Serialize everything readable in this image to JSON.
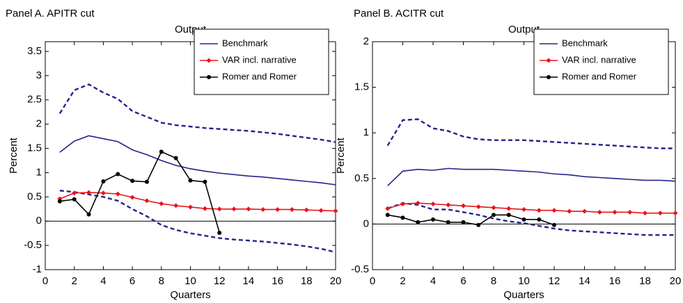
{
  "chart_data": [
    {
      "type": "line",
      "panel_label": "Panel A. APITR cut",
      "title": "Output",
      "xlabel": "Quarters",
      "ylabel": "Percent",
      "x": [
        1,
        2,
        3,
        4,
        5,
        6,
        7,
        8,
        9,
        10,
        11,
        12,
        13,
        14,
        15,
        16,
        17,
        18,
        19,
        20
      ],
      "xlim": [
        0,
        20
      ],
      "xticks": [
        0,
        2,
        4,
        6,
        8,
        10,
        12,
        14,
        16,
        18,
        20
      ],
      "ylim": [
        -1,
        3.7
      ],
      "yticks": [
        -1,
        -0.5,
        0,
        0.5,
        1,
        1.5,
        2,
        2.5,
        3,
        3.5
      ],
      "legend": "upper right",
      "series": [
        {
          "color": "#23238c",
          "dash": true,
          "values": [
            2.22,
            2.7,
            2.82,
            2.65,
            2.52,
            2.27,
            2.15,
            2.03,
            1.98,
            1.95,
            1.92,
            1.9,
            1.88,
            1.86,
            1.83,
            1.8,
            1.76,
            1.72,
            1.68,
            1.63
          ]
        },
        {
          "color": "#23238c",
          "dash": true,
          "values": [
            0.63,
            0.6,
            0.55,
            0.5,
            0.42,
            0.25,
            0.1,
            -0.08,
            -0.18,
            -0.25,
            -0.3,
            -0.35,
            -0.38,
            -0.4,
            -0.42,
            -0.45,
            -0.48,
            -0.52,
            -0.57,
            -0.64
          ]
        },
        {
          "name": "Benchmark",
          "color": "#23238c",
          "marker": "none",
          "values": [
            1.42,
            1.65,
            1.76,
            1.7,
            1.64,
            1.47,
            1.37,
            1.25,
            1.15,
            1.08,
            1.03,
            0.99,
            0.96,
            0.93,
            0.91,
            0.88,
            0.85,
            0.82,
            0.79,
            0.75
          ]
        },
        {
          "name": "VAR incl. narrative",
          "color": "#e8141c",
          "marker": "diamond",
          "values": [
            0.46,
            0.58,
            0.59,
            0.58,
            0.56,
            0.49,
            0.42,
            0.36,
            0.32,
            0.29,
            0.26,
            0.25,
            0.25,
            0.25,
            0.24,
            0.24,
            0.24,
            0.23,
            0.22,
            0.21
          ]
        },
        {
          "name": "Romer and Romer",
          "color": "#000000",
          "marker": "circle",
          "values": [
            0.41,
            0.45,
            0.14,
            0.82,
            0.97,
            0.83,
            0.81,
            1.43,
            1.3,
            0.84,
            0.81,
            -0.24,
            null,
            null,
            null,
            null,
            null,
            null,
            null,
            null
          ]
        }
      ]
    },
    {
      "type": "line",
      "panel_label": "Panel B. ACITR cut",
      "title": "Output",
      "xlabel": "Quarters",
      "ylabel": "Percent",
      "x": [
        1,
        2,
        3,
        4,
        5,
        6,
        7,
        8,
        9,
        10,
        11,
        12,
        13,
        14,
        15,
        16,
        17,
        18,
        19,
        20
      ],
      "xlim": [
        0,
        20
      ],
      "xticks": [
        0,
        2,
        4,
        6,
        8,
        10,
        12,
        14,
        16,
        18,
        20
      ],
      "ylim": [
        -0.5,
        2
      ],
      "yticks": [
        -0.5,
        0,
        0.5,
        1,
        1.5,
        2
      ],
      "legend": "upper right",
      "series": [
        {
          "color": "#23238c",
          "dash": true,
          "values": [
            0.86,
            1.14,
            1.15,
            1.05,
            1.02,
            0.96,
            0.93,
            0.92,
            0.92,
            0.92,
            0.91,
            0.9,
            0.89,
            0.88,
            0.87,
            0.86,
            0.85,
            0.84,
            0.83,
            0.83
          ]
        },
        {
          "color": "#23238c",
          "dash": true,
          "values": [
            0.17,
            0.23,
            0.21,
            0.16,
            0.16,
            0.13,
            0.1,
            0.06,
            0.03,
            0.01,
            -0.02,
            -0.05,
            -0.07,
            -0.08,
            -0.09,
            -0.1,
            -0.11,
            -0.12,
            -0.12,
            -0.12
          ]
        },
        {
          "name": "Benchmark",
          "color": "#23238c",
          "marker": "none",
          "values": [
            0.42,
            0.58,
            0.6,
            0.59,
            0.61,
            0.6,
            0.6,
            0.6,
            0.59,
            0.58,
            0.57,
            0.55,
            0.54,
            0.52,
            0.51,
            0.5,
            0.49,
            0.48,
            0.48,
            0.47
          ]
        },
        {
          "name": "VAR incl. narrative",
          "color": "#e8141c",
          "marker": "diamond",
          "values": [
            0.17,
            0.22,
            0.23,
            0.22,
            0.21,
            0.2,
            0.19,
            0.18,
            0.17,
            0.16,
            0.15,
            0.15,
            0.14,
            0.14,
            0.13,
            0.13,
            0.13,
            0.12,
            0.12,
            0.12
          ]
        },
        {
          "name": "Romer and Romer",
          "color": "#000000",
          "marker": "circle",
          "values": [
            0.1,
            0.07,
            0.02,
            0.05,
            0.02,
            0.02,
            -0.01,
            0.1,
            0.1,
            0.05,
            0.05,
            -0.01,
            null,
            null,
            null,
            null,
            null,
            null,
            null,
            null
          ]
        }
      ]
    }
  ]
}
